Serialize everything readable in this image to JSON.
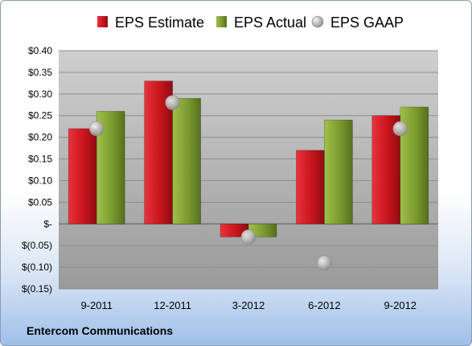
{
  "chart_data": {
    "type": "bar",
    "categories": [
      "9-2011",
      "12-2011",
      "3-2012",
      "6-2012",
      "9-2012"
    ],
    "series": [
      {
        "name": "EPS Estimate",
        "values": [
          0.22,
          0.33,
          -0.03,
          0.17,
          0.25
        ],
        "color": "#c8141c"
      },
      {
        "name": "EPS Actual",
        "values": [
          0.26,
          0.29,
          -0.03,
          0.24,
          0.27
        ],
        "color": "#7b9a2e"
      },
      {
        "name": "EPS GAAP",
        "values": [
          0.22,
          0.28,
          -0.03,
          -0.09,
          0.22
        ],
        "color": "#b0b0b0",
        "marker": "circle"
      }
    ],
    "y_ticks": [
      {
        "value": 0.4,
        "label": "$0.40"
      },
      {
        "value": 0.35,
        "label": "$0.35"
      },
      {
        "value": 0.3,
        "label": "$0.30"
      },
      {
        "value": 0.25,
        "label": "$0.25"
      },
      {
        "value": 0.2,
        "label": "$0.20"
      },
      {
        "value": 0.15,
        "label": "$0.15"
      },
      {
        "value": 0.1,
        "label": "$0.10"
      },
      {
        "value": 0.05,
        "label": "$0.05"
      },
      {
        "value": 0.0,
        "label": "$-"
      },
      {
        "value": -0.05,
        "label": "$(0.05)"
      },
      {
        "value": -0.1,
        "label": "$(0.10)"
      },
      {
        "value": -0.15,
        "label": "$(0.15)"
      }
    ],
    "ylim": [
      -0.15,
      0.4
    ],
    "grid": true,
    "legend_position": "top"
  },
  "footer": {
    "company": "Entercom Communications"
  }
}
